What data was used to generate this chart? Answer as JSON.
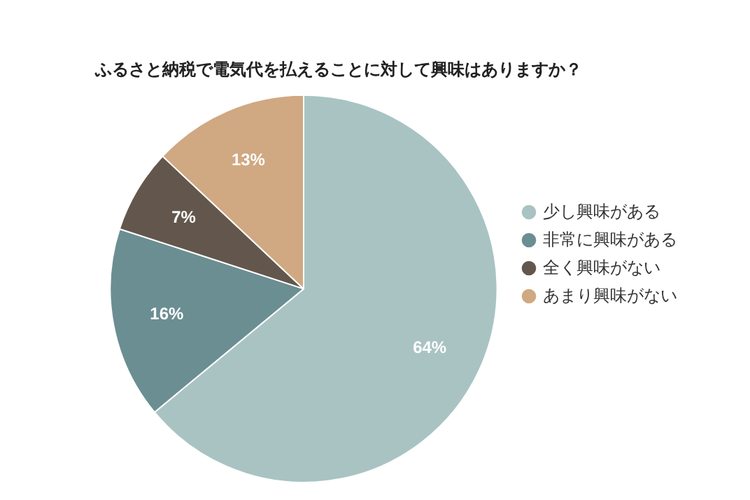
{
  "chart_data": {
    "type": "pie",
    "title": "ふるさと納税で電気代を払えることに対して興味はありますか？",
    "categories": [
      "少し興味がある",
      "非常に興味がある",
      "全く興味がない",
      "あまり興味がない"
    ],
    "values": [
      64,
      16,
      7,
      13
    ],
    "value_labels": [
      "64%",
      "16%",
      "7%",
      "13%"
    ],
    "colors": [
      "#a9c3c3",
      "#6b8e92",
      "#63574d",
      "#d0a882"
    ],
    "legend": "right"
  }
}
